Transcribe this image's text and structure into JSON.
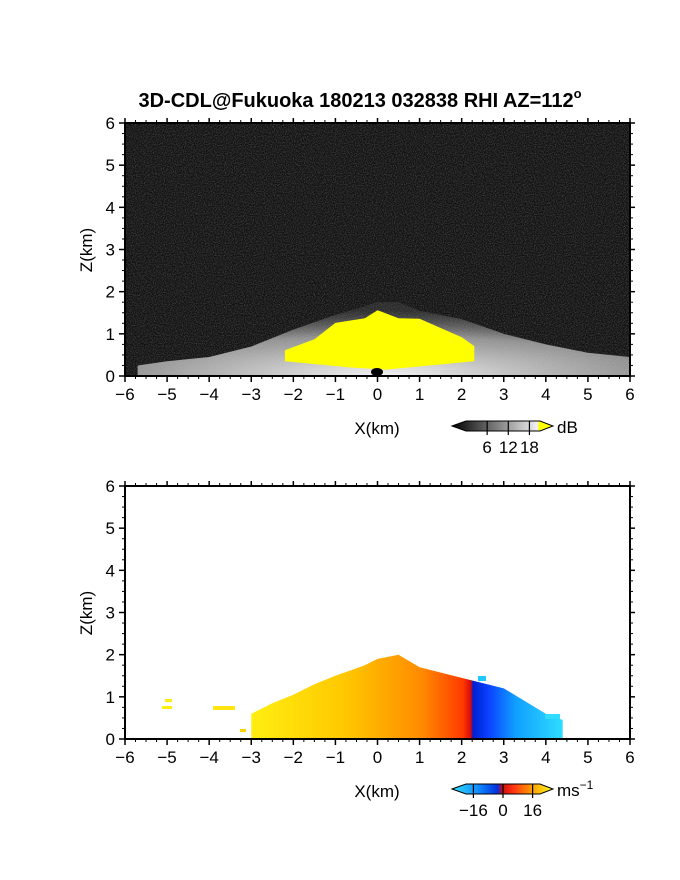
{
  "title": "3D-CDL@Fukuoka 180213 032838 RHI AZ=112",
  "title_superscript": "o",
  "colors": {
    "yellow": "#ffff00",
    "background_dark": "#111111"
  },
  "chart_data": [
    {
      "type": "heatmap",
      "xlabel": "X(km)",
      "ylabel": "Z(km)",
      "xlim": [
        -6,
        6
      ],
      "ylim": [
        0,
        6
      ],
      "x_ticks": [
        -6,
        -5,
        -4,
        -3,
        -2,
        -1,
        0,
        1,
        2,
        3,
        4,
        5,
        6
      ],
      "y_ticks": [
        0,
        1,
        2,
        3,
        4,
        5,
        6
      ],
      "colorbar": {
        "unit": "dB",
        "ticks": [
          6,
          12,
          18
        ],
        "range": [
          0,
          21
        ],
        "colormap": "grayscale, saturated yellow above 18 dB"
      },
      "echo_top_profile": [
        [
          -5.7,
          0.25
        ],
        [
          -5.0,
          0.35
        ],
        [
          -4.0,
          0.45
        ],
        [
          -3.0,
          0.7
        ],
        [
          -2.0,
          1.1
        ],
        [
          -1.0,
          1.45
        ],
        [
          -0.3,
          1.65
        ],
        [
          0.0,
          1.75
        ],
        [
          0.5,
          1.75
        ],
        [
          1.0,
          1.55
        ],
        [
          2.0,
          1.35
        ],
        [
          3.0,
          1.0
        ],
        [
          4.0,
          0.75
        ],
        [
          5.0,
          0.55
        ],
        [
          6.0,
          0.45
        ]
      ],
      "high_intensity_profile": [
        [
          -2.2,
          0.55
        ],
        [
          -1.5,
          0.95
        ],
        [
          -1.0,
          1.2
        ],
        [
          -0.3,
          1.45
        ],
        [
          0.0,
          1.5
        ],
        [
          0.5,
          1.45
        ],
        [
          1.0,
          1.3
        ],
        [
          2.0,
          1.0
        ],
        [
          2.3,
          0.65
        ]
      ]
    },
    {
      "type": "heatmap",
      "xlabel": "X(km)",
      "ylabel": "Z(km)",
      "xlim": [
        -6,
        6
      ],
      "ylim": [
        0,
        6
      ],
      "x_ticks": [
        -6,
        -5,
        -4,
        -3,
        -2,
        -1,
        0,
        1,
        2,
        3,
        4,
        5,
        6
      ],
      "y_ticks": [
        0,
        1,
        2,
        3,
        4,
        5,
        6
      ],
      "colorbar": {
        "unit": "ms",
        "unit_superscript": "−1",
        "ticks": [
          -16,
          0,
          16
        ],
        "tick_labels": [
          "−16",
          "0",
          "16"
        ],
        "range": [
          -20,
          20
        ],
        "colormap": "cyan-blue (negative) to red-orange-yellow (positive)"
      },
      "echo_top_profile": [
        [
          -3.0,
          0.6
        ],
        [
          -2.5,
          0.85
        ],
        [
          -2.0,
          1.05
        ],
        [
          -1.5,
          1.3
        ],
        [
          -1.0,
          1.5
        ],
        [
          -0.3,
          1.75
        ],
        [
          0.0,
          1.9
        ],
        [
          0.5,
          2.0
        ],
        [
          1.0,
          1.7
        ],
        [
          2.0,
          1.45
        ],
        [
          3.0,
          1.2
        ],
        [
          4.0,
          0.6
        ],
        [
          4.4,
          0.45
        ]
      ],
      "echo_base": 0.0,
      "velocity_at_edges_ms": {
        "left": 16,
        "right": -16
      }
    }
  ]
}
